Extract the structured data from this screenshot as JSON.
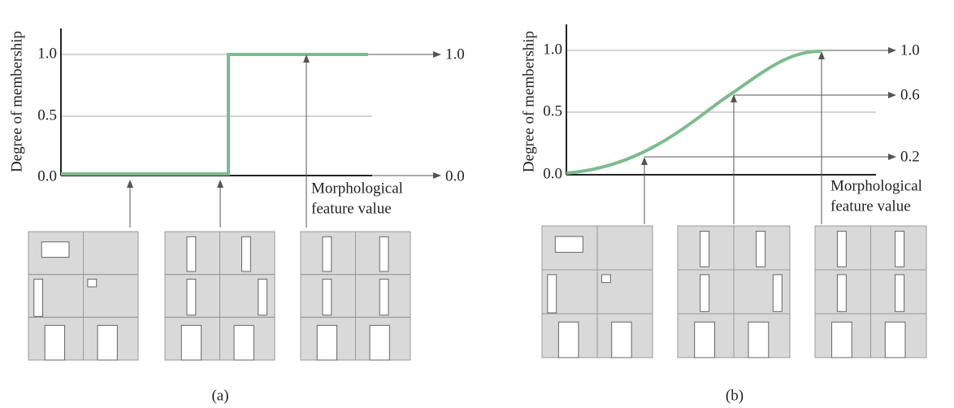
{
  "panels": [
    {
      "caption": "(a)",
      "y_label": "Degree of membership",
      "y_ticks": [
        "0.0",
        "0.5",
        "1.0"
      ],
      "x_label": [
        "Morphological",
        "feature value"
      ],
      "outputs": [
        "1.0",
        "0.0"
      ]
    },
    {
      "caption": "(b)",
      "y_label": "Degree of membership",
      "y_ticks": [
        "0.0",
        "0.5",
        "1.0"
      ],
      "x_label": [
        "Morphological",
        "feature value"
      ],
      "outputs": [
        "1.0",
        "0.6",
        "0.2"
      ]
    }
  ]
}
